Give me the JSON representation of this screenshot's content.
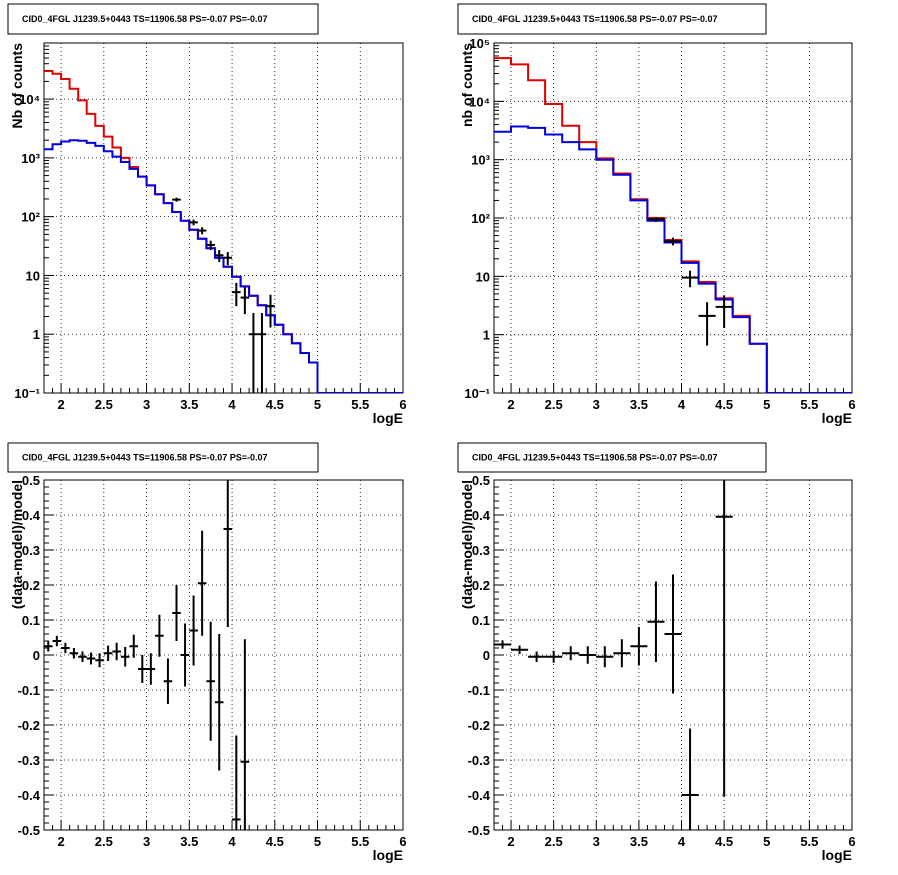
{
  "chart_data": [
    {
      "type": "line",
      "title": "CID0_4FGL J1239.5+0443 TS=11906.58 PS=-0.07 PS=-0.07",
      "xlabel": "logE",
      "ylabel": "Nb of counts",
      "xlim": [
        1.8,
        6
      ],
      "ylim": [
        0.1,
        90000
      ],
      "yscale": "log",
      "grid": true,
      "x_ticks": [
        "2",
        "2.5",
        "3",
        "3.5",
        "4",
        "4.5",
        "5",
        "5.5",
        "6"
      ],
      "y_ticks": [
        "10^-1",
        "1",
        "10",
        "10^2",
        "10^3",
        "10^4"
      ],
      "series": [
        {
          "color": "#e00000",
          "style": "step",
          "edges": [
            1.8,
            1.9,
            2.0,
            2.1,
            2.2,
            2.3,
            2.4,
            2.5,
            2.6,
            2.7,
            2.8,
            2.9,
            3.0,
            3.1,
            3.2,
            3.3,
            3.4,
            3.5,
            3.6,
            3.7,
            3.8,
            3.9,
            4.0,
            4.1,
            4.2,
            4.3,
            4.4,
            4.5,
            4.6,
            4.7,
            4.8,
            4.9,
            5.0,
            5.1,
            5.2,
            5.3,
            5.4,
            5.5,
            5.6,
            5.7,
            5.8,
            5.9,
            6.0
          ],
          "values": [
            30000,
            27000,
            22000,
            15000,
            9500,
            5600,
            3500,
            2300,
            1500,
            1000,
            700,
            480,
            340,
            240,
            170,
            120,
            85,
            60,
            42,
            29,
            20,
            14,
            9.5,
            6.5,
            4.5,
            3.1,
            2.1,
            1.45,
            1,
            0.7,
            0.48,
            0.33,
            0.1,
            0.1,
            0.1,
            0.1,
            0.1,
            0.1,
            0.1,
            0.1,
            0.1,
            0.1
          ]
        },
        {
          "color": "#0000e0",
          "style": "step",
          "edges": [
            1.8,
            1.9,
            2.0,
            2.1,
            2.2,
            2.3,
            2.4,
            2.5,
            2.6,
            2.7,
            2.8,
            2.9,
            3.0,
            3.1,
            3.2,
            3.3,
            3.4,
            3.5,
            3.6,
            3.7,
            3.8,
            3.9,
            4.0,
            4.1,
            4.2,
            4.3,
            4.4,
            4.5,
            4.6,
            4.7,
            4.8,
            4.9,
            5.0,
            5.1,
            5.2,
            5.3,
            5.4,
            5.5,
            5.6,
            5.7,
            5.8,
            5.9,
            6.0
          ],
          "values": [
            1400,
            1700,
            1900,
            2000,
            1950,
            1800,
            1600,
            1300,
            1050,
            850,
            650,
            480,
            340,
            240,
            170,
            120,
            85,
            60,
            42,
            29,
            20,
            14,
            9.5,
            6.5,
            4.5,
            3.1,
            2.1,
            1.45,
            1,
            0.7,
            0.48,
            0.33,
            0.1,
            0.1,
            0.1,
            0.1,
            0.1,
            0.1,
            0.1,
            0.1,
            0.1,
            0.1
          ]
        }
      ],
      "data_points": [
        {
          "x": 3.35,
          "y": 195,
          "xerr": 0.05,
          "ylo": 180,
          "yhi": 210
        },
        {
          "x": 3.55,
          "y": 80,
          "xerr": 0.05,
          "ylo": 71,
          "yhi": 89
        },
        {
          "x": 3.65,
          "y": 58,
          "xerr": 0.05,
          "ylo": 50,
          "yhi": 66
        },
        {
          "x": 3.75,
          "y": 33,
          "xerr": 0.05,
          "ylo": 27,
          "yhi": 39
        },
        {
          "x": 3.85,
          "y": 22,
          "xerr": 0.05,
          "ylo": 17,
          "yhi": 27
        },
        {
          "x": 3.95,
          "y": 20,
          "xerr": 0.05,
          "ylo": 15,
          "yhi": 25
        },
        {
          "x": 4.05,
          "y": 5.2,
          "xerr": 0.05,
          "ylo": 3,
          "yhi": 7.5
        },
        {
          "x": 4.15,
          "y": 4.2,
          "xerr": 0.05,
          "ylo": 2.2,
          "yhi": 6.3
        },
        {
          "x": 4.25,
          "y": 1.0,
          "xerr": 0.05,
          "ylo": 0.1,
          "yhi": 2.3
        },
        {
          "x": 4.35,
          "y": 1.0,
          "xerr": 0.05,
          "ylo": 0.1,
          "yhi": 2.3
        },
        {
          "x": 4.45,
          "y": 3.0,
          "xerr": 0.05,
          "ylo": 1.3,
          "yhi": 4.7
        }
      ]
    },
    {
      "type": "line",
      "title": "CID0_4FGL J1239.5+0443 TS=11906.58 PS=-0.07 PS=-0.07",
      "xlabel": "logE",
      "ylabel": "nb of counts",
      "xlim": [
        1.8,
        6
      ],
      "ylim": [
        0.1,
        100000
      ],
      "yscale": "log",
      "grid": true,
      "x_ticks": [
        "2",
        "2.5",
        "3",
        "3.5",
        "4",
        "4.5",
        "5",
        "5.5",
        "6"
      ],
      "y_ticks": [
        "10^-1",
        "1",
        "10",
        "10^2",
        "10^3",
        "10^4",
        "10^5"
      ],
      "series": [
        {
          "color": "#e00000",
          "style": "step",
          "edges": [
            1.8,
            2.0,
            2.2,
            2.4,
            2.6,
            2.8,
            3.0,
            3.2,
            3.4,
            3.6,
            3.8,
            4.0,
            4.2,
            4.4,
            4.6,
            4.8,
            5.0,
            5.2,
            5.4,
            5.6,
            5.8,
            6.0
          ],
          "values": [
            55000,
            43000,
            23000,
            9000,
            3800,
            2000,
            1050,
            580,
            210,
            100,
            42,
            18,
            8,
            4.2,
            2.1,
            0.7,
            0.1,
            0.1,
            0.1,
            0.1,
            0.1
          ]
        },
        {
          "color": "#0000e0",
          "style": "step",
          "edges": [
            1.8,
            2.0,
            2.2,
            2.4,
            2.6,
            2.8,
            3.0,
            3.2,
            3.4,
            3.6,
            3.8,
            4.0,
            4.2,
            4.4,
            4.6,
            4.8,
            5.0,
            5.2,
            5.4,
            5.6,
            5.8,
            6.0
          ],
          "values": [
            3000,
            3700,
            3500,
            2700,
            2000,
            1500,
            1000,
            550,
            200,
            90,
            38,
            17,
            7.5,
            4,
            2,
            0.7,
            0.1,
            0.1,
            0.1,
            0.1,
            0.1
          ]
        }
      ],
      "data_points": [
        {
          "x": 3.7,
          "y": 95,
          "xerr": 0.1,
          "ylo": 86,
          "yhi": 104
        },
        {
          "x": 3.9,
          "y": 40,
          "xerr": 0.1,
          "ylo": 34,
          "yhi": 46
        },
        {
          "x": 4.1,
          "y": 9.5,
          "xerr": 0.1,
          "ylo": 6.5,
          "yhi": 12.5
        },
        {
          "x": 4.3,
          "y": 2.1,
          "xerr": 0.1,
          "ylo": 0.65,
          "yhi": 3.6
        },
        {
          "x": 4.5,
          "y": 3.0,
          "xerr": 0.1,
          "ylo": 1.3,
          "yhi": 4.7
        }
      ]
    },
    {
      "type": "scatter",
      "title": "CID0_4FGL J1239.5+0443 TS=11906.58 PS=-0.07 PS=-0.07",
      "xlabel": "logE",
      "ylabel": "(data-model)/model",
      "xlim": [
        1.8,
        6
      ],
      "ylim": [
        -0.5,
        0.5
      ],
      "grid": true,
      "x_ticks": [
        "2",
        "2.5",
        "3",
        "3.5",
        "4",
        "4.5",
        "5",
        "5.5",
        "6"
      ],
      "y_ticks": [
        "-0.5",
        "-0.4",
        "-0.3",
        "-0.2",
        "-0.1",
        "0",
        "0.1",
        "0.2",
        "0.3",
        "0.4",
        "0.5"
      ],
      "points": [
        {
          "x": 1.85,
          "y": 0.025,
          "xerr": 0.05,
          "yerr": 0.015
        },
        {
          "x": 1.95,
          "y": 0.04,
          "xerr": 0.05,
          "yerr": 0.015
        },
        {
          "x": 2.05,
          "y": 0.02,
          "xerr": 0.05,
          "yerr": 0.015
        },
        {
          "x": 2.15,
          "y": 0.005,
          "xerr": 0.05,
          "yerr": 0.015
        },
        {
          "x": 2.25,
          "y": -0.005,
          "xerr": 0.05,
          "yerr": 0.015
        },
        {
          "x": 2.35,
          "y": -0.01,
          "xerr": 0.05,
          "yerr": 0.017
        },
        {
          "x": 2.45,
          "y": -0.015,
          "xerr": 0.05,
          "yerr": 0.02
        },
        {
          "x": 2.55,
          "y": 0.005,
          "xerr": 0.05,
          "yerr": 0.022
        },
        {
          "x": 2.65,
          "y": 0.01,
          "xerr": 0.05,
          "yerr": 0.025
        },
        {
          "x": 2.75,
          "y": -0.005,
          "xerr": 0.05,
          "yerr": 0.028
        },
        {
          "x": 2.85,
          "y": 0.025,
          "xerr": 0.05,
          "yerr": 0.033
        },
        {
          "x": 2.95,
          "y": -0.04,
          "xerr": 0.05,
          "yerr": 0.04
        },
        {
          "x": 3.05,
          "y": -0.04,
          "xerr": 0.05,
          "yerr": 0.045
        },
        {
          "x": 3.15,
          "y": 0.055,
          "xerr": 0.05,
          "yerr": 0.06
        },
        {
          "x": 3.25,
          "y": -0.075,
          "xerr": 0.05,
          "yerr": 0.065
        },
        {
          "x": 3.35,
          "y": 0.12,
          "xerr": 0.05,
          "yerr": 0.08
        },
        {
          "x": 3.45,
          "y": 0.0,
          "xerr": 0.05,
          "yerr": 0.09
        },
        {
          "x": 3.55,
          "y": 0.07,
          "xerr": 0.05,
          "yerr": 0.1
        },
        {
          "x": 3.65,
          "y": 0.205,
          "xerr": 0.05,
          "yerr": 0.15
        },
        {
          "x": 3.75,
          "y": -0.075,
          "xerr": 0.05,
          "yerr": 0.17
        },
        {
          "x": 3.85,
          "y": -0.135,
          "xerr": 0.05,
          "yerr": 0.195
        },
        {
          "x": 3.95,
          "y": 0.36,
          "xerr": 0.05,
          "yerr": 0.28
        },
        {
          "x": 4.05,
          "y": -0.47,
          "xerr": 0.05,
          "yerr": 0.24
        },
        {
          "x": 4.15,
          "y": -0.305,
          "xerr": 0.05,
          "yerr": 0.35
        }
      ]
    },
    {
      "type": "scatter",
      "title": "CID0_4FGL J1239.5+0443 TS=11906.58 PS=-0.07 PS=-0.07",
      "xlabel": "logE",
      "ylabel": "(data-model)/model",
      "xlim": [
        1.8,
        6
      ],
      "ylim": [
        -0.5,
        0.5
      ],
      "grid": true,
      "x_ticks": [
        "2",
        "2.5",
        "3",
        "3.5",
        "4",
        "4.5",
        "5",
        "5.5",
        "6"
      ],
      "y_ticks": [
        "-0.5",
        "-0.4",
        "-0.3",
        "-0.2",
        "-0.1",
        "0",
        "0.1",
        "0.2",
        "0.3",
        "0.4",
        "0.5"
      ],
      "points": [
        {
          "x": 1.9,
          "y": 0.03,
          "xerr": 0.1,
          "yerr": 0.012
        },
        {
          "x": 2.1,
          "y": 0.015,
          "xerr": 0.1,
          "yerr": 0.012
        },
        {
          "x": 2.3,
          "y": -0.005,
          "xerr": 0.1,
          "yerr": 0.015
        },
        {
          "x": 2.5,
          "y": -0.005,
          "xerr": 0.1,
          "yerr": 0.017
        },
        {
          "x": 2.7,
          "y": 0.005,
          "xerr": 0.1,
          "yerr": 0.02
        },
        {
          "x": 2.9,
          "y": 0.0,
          "xerr": 0.1,
          "yerr": 0.025
        },
        {
          "x": 3.1,
          "y": -0.005,
          "xerr": 0.1,
          "yerr": 0.03
        },
        {
          "x": 3.3,
          "y": 0.005,
          "xerr": 0.1,
          "yerr": 0.04
        },
        {
          "x": 3.5,
          "y": 0.025,
          "xerr": 0.1,
          "yerr": 0.055
        },
        {
          "x": 3.7,
          "y": 0.095,
          "xerr": 0.1,
          "yerr": 0.115
        },
        {
          "x": 3.9,
          "y": 0.06,
          "xerr": 0.1,
          "yerr": 0.17
        },
        {
          "x": 4.1,
          "y": -0.4,
          "xerr": 0.1,
          "yerr": 0.19
        },
        {
          "x": 4.5,
          "y": 0.395,
          "xerr": 0.1,
          "yerr": 0.8
        }
      ]
    }
  ]
}
